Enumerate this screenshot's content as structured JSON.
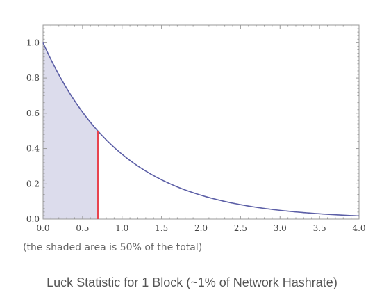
{
  "chart_data": {
    "type": "area",
    "function": "exp(-x)",
    "x_range": [
      0,
      4
    ],
    "ylim": [
      0,
      1.1
    ],
    "xticks": [
      "0.0",
      "0.5",
      "1.0",
      "1.5",
      "2.0",
      "2.5",
      "3.0",
      "3.5",
      "4.0"
    ],
    "yticks": [
      "0.0",
      "0.2",
      "0.4",
      "0.6",
      "0.8",
      "1.0"
    ],
    "shaded_range": [
      0,
      0.693
    ],
    "marker_x": 0.693,
    "marker_y": 0.5,
    "grid": false,
    "colors": {
      "curve": "#5b5ea6",
      "fill": "#dcdcec",
      "marker": "#e8444f",
      "frame": "#999999"
    }
  },
  "note": "(the shaded area is 50% of the total)",
  "caption": "Luck Statistic for 1 Block (~1% of Network Hashrate)"
}
